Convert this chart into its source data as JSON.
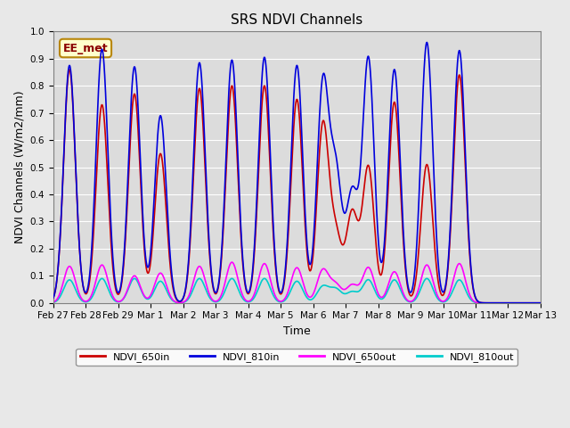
{
  "title": "SRS NDVI Channels",
  "xlabel": "Time",
  "ylabel": "NDVI Channels (W/m2/mm)",
  "ylim": [
    0.0,
    1.0
  ],
  "fig_bg_color": "#e8e8e8",
  "plot_bg_color": "#dcdcdc",
  "annotation_text": "EE_met",
  "annotation_bg": "#ffffcc",
  "annotation_fg": "#8b0000",
  "annotation_border": "#b8860b",
  "series": {
    "NDVI_650in": {
      "color": "#cc0000",
      "lw": 1.2,
      "zorder": 3
    },
    "NDVI_810in": {
      "color": "#0000dd",
      "lw": 1.2,
      "zorder": 4
    },
    "NDVI_650out": {
      "color": "#ff00ff",
      "lw": 1.2,
      "zorder": 2
    },
    "NDVI_810out": {
      "color": "#00cccc",
      "lw": 1.2,
      "zorder": 1
    }
  },
  "day_peaks": [
    {
      "day": 0.5,
      "p650in": 0.86,
      "p810in": 0.875,
      "p650out": 0.135,
      "p810out": 0.085
    },
    {
      "day": 1.5,
      "p650in": 0.73,
      "p810in": 0.935,
      "p650out": 0.14,
      "p810out": 0.09
    },
    {
      "day": 2.5,
      "p650in": 0.77,
      "p810in": 0.87,
      "p650out": 0.1,
      "p810out": 0.09
    },
    {
      "day": 3.3,
      "p650in": 0.55,
      "p810in": 0.69,
      "p650out": 0.11,
      "p810out": 0.08
    },
    {
      "day": 4.5,
      "p650in": 0.79,
      "p810in": 0.885,
      "p650out": 0.135,
      "p810out": 0.09
    },
    {
      "day": 5.5,
      "p650in": 0.8,
      "p810in": 0.895,
      "p650out": 0.15,
      "p810out": 0.09
    },
    {
      "day": 6.5,
      "p650in": 0.8,
      "p810in": 0.905,
      "p650out": 0.145,
      "p810out": 0.09
    },
    {
      "day": 7.5,
      "p650in": 0.75,
      "p810in": 0.875,
      "p650out": 0.13,
      "p810out": 0.08
    },
    {
      "day": 8.3,
      "p650in": 0.65,
      "p810in": 0.8,
      "p650out": 0.12,
      "p810out": 0.06
    },
    {
      "day": 8.7,
      "p650in": 0.24,
      "p810in": 0.47,
      "p650out": 0.065,
      "p810out": 0.05
    },
    {
      "day": 9.2,
      "p650in": 0.33,
      "p810in": 0.4,
      "p650out": 0.065,
      "p810out": 0.04
    },
    {
      "day": 9.7,
      "p650in": 0.5,
      "p810in": 0.9,
      "p650out": 0.13,
      "p810out": 0.085
    },
    {
      "day": 10.5,
      "p650in": 0.74,
      "p810in": 0.86,
      "p650out": 0.115,
      "p810out": 0.085
    },
    {
      "day": 11.5,
      "p650in": 0.51,
      "p810in": 0.96,
      "p650out": 0.14,
      "p810out": 0.09
    },
    {
      "day": 12.5,
      "p650in": 0.84,
      "p810in": 0.93,
      "p650out": 0.145,
      "p810out": 0.085
    }
  ],
  "sigma": 0.18,
  "xlim": [
    0,
    15
  ],
  "xtick_positions": [
    0,
    1,
    2,
    3,
    4,
    5,
    6,
    7,
    8,
    9,
    10,
    11,
    12,
    13,
    14,
    15
  ],
  "xtick_labels": [
    "Feb 27",
    "Feb 28",
    "Feb 29",
    "Mar 1",
    "Mar 2",
    "Mar 3",
    "Mar 4",
    "Mar 5",
    "Mar 6",
    "Mar 7",
    "Mar 8",
    "Mar 9",
    "Mar 10",
    "Mar 11",
    "Mar 12",
    "Mar 13"
  ],
  "ytick_positions": [
    0.0,
    0.1,
    0.2,
    0.3,
    0.4,
    0.5,
    0.6,
    0.7,
    0.8,
    0.9,
    1.0
  ],
  "grid_color": "#ffffff",
  "grid_lw": 0.8,
  "title_fontsize": 11,
  "axis_label_fontsize": 9,
  "tick_fontsize": 7.5,
  "legend_fontsize": 8,
  "figsize": [
    6.4,
    4.8
  ],
  "dpi": 100
}
